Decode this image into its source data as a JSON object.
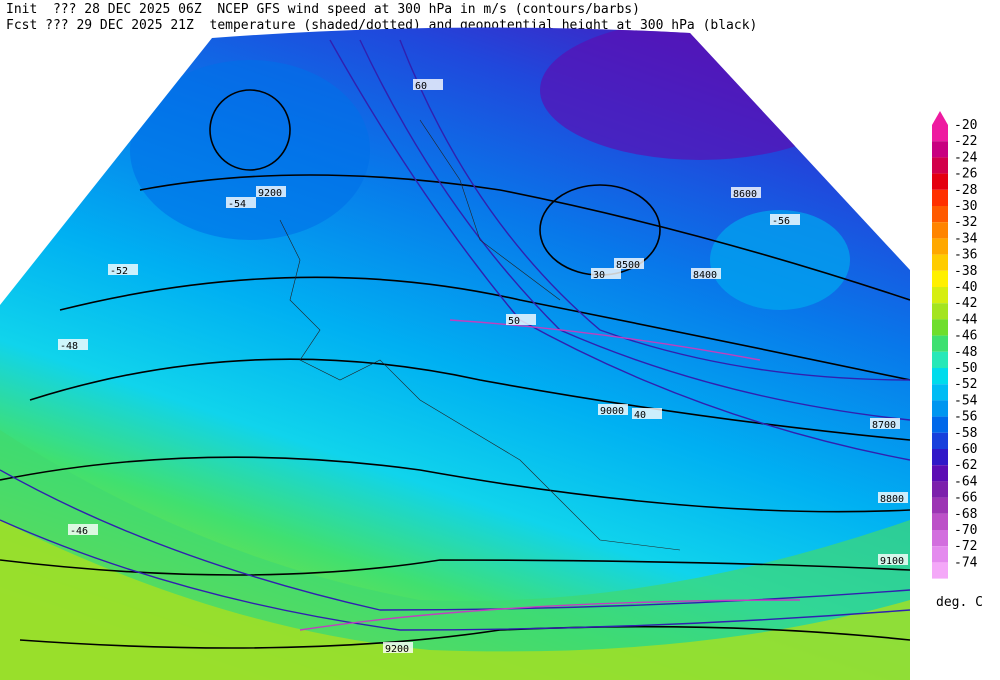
{
  "header": {
    "init": "Init  ??? 28 DEC 2025 06Z  NCEP GFS wind speed at 300 hPa in m/s (contours/barbs)",
    "fcst": "Fcst ??? 29 DEC 2025 21Z  temperature (shaded/dotted) and geopotential height at 300 hPa (black)"
  },
  "colorbar": {
    "levels": [
      {
        "value": -20,
        "color": "#ee1aa0"
      },
      {
        "value": -22,
        "color": "#c80080"
      },
      {
        "value": -24,
        "color": "#d2004a"
      },
      {
        "value": -26,
        "color": "#e40010"
      },
      {
        "value": -28,
        "color": "#ff3000"
      },
      {
        "value": -30,
        "color": "#ff5a00"
      },
      {
        "value": -32,
        "color": "#ff8400"
      },
      {
        "value": -34,
        "color": "#ffa800"
      },
      {
        "value": -36,
        "color": "#ffcc00"
      },
      {
        "value": -38,
        "color": "#fff000"
      },
      {
        "value": -40,
        "color": "#d6ee10"
      },
      {
        "value": -42,
        "color": "#a4e420"
      },
      {
        "value": -44,
        "color": "#6ede2c"
      },
      {
        "value": -46,
        "color": "#3ee070"
      },
      {
        "value": -48,
        "color": "#28e8b8"
      },
      {
        "value": -50,
        "color": "#00dcec"
      },
      {
        "value": -52,
        "color": "#00bcf4"
      },
      {
        "value": -54,
        "color": "#0096f0"
      },
      {
        "value": -56,
        "color": "#0068ea"
      },
      {
        "value": -58,
        "color": "#1840dc"
      },
      {
        "value": -60,
        "color": "#3018c8"
      },
      {
        "value": -62,
        "color": "#5c0cb4"
      },
      {
        "value": -64,
        "color": "#7c20ac"
      },
      {
        "value": -66,
        "color": "#9c34b4"
      },
      {
        "value": -68,
        "color": "#bc50c8"
      },
      {
        "value": -70,
        "color": "#d26ede"
      },
      {
        "value": -72,
        "color": "#e48aee"
      },
      {
        "value": -74,
        "color": "#f4a8f8"
      }
    ],
    "unit": "deg. C"
  },
  "map": {
    "labels": [
      "9200",
      "8600",
      "8500",
      "8400",
      "9000",
      "8700",
      "8800",
      "9100",
      "9200",
      "30",
      "40",
      "50",
      "60",
      "-52",
      "-54",
      "-46",
      "-48",
      "-56"
    ]
  }
}
